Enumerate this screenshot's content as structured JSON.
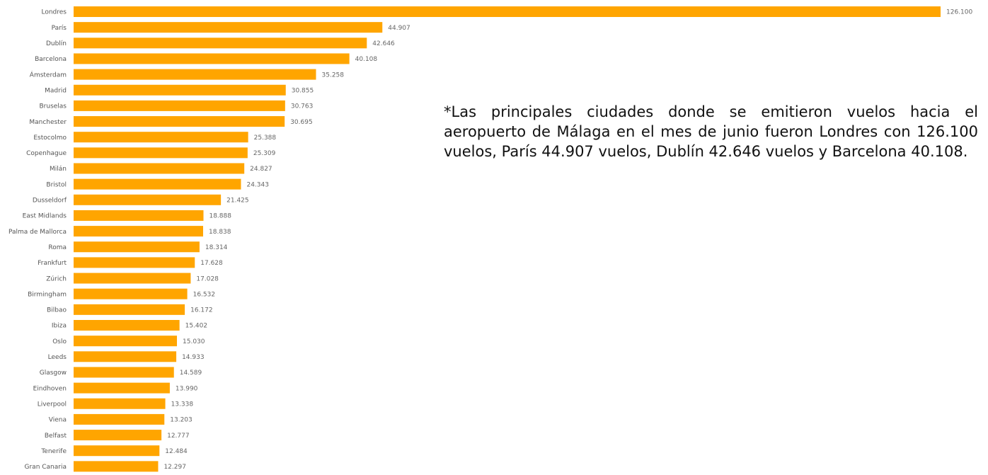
{
  "chart_data": {
    "type": "bar",
    "orientation": "horizontal",
    "bar_color": "#FFA500",
    "categories": [
      "Londres",
      "París",
      "Dublín",
      "Barcelona",
      "Ámsterdam",
      "Madrid",
      "Bruselas",
      "Manchester",
      "Estocolmo",
      "Copenhague",
      "Milán",
      "Bristol",
      "Dusseldorf",
      "East Midlands",
      "Palma de Mallorca",
      "Roma",
      "Frankfurt",
      "Zúrich",
      "Birmingham",
      "Bilbao",
      "Ibiza",
      "Oslo",
      "Leeds",
      "Glasgow",
      "Eindhoven",
      "Liverpool",
      "Viena",
      "Belfast",
      "Tenerife",
      "Gran Canaria"
    ],
    "values": [
      126100,
      44907,
      42646,
      40108,
      35258,
      30855,
      30763,
      30695,
      25388,
      25309,
      24827,
      24343,
      21425,
      18888,
      18838,
      18314,
      17628,
      17028,
      16532,
      16172,
      15402,
      15030,
      14933,
      14589,
      13990,
      13338,
      13203,
      12777,
      12484,
      12297
    ],
    "value_labels": [
      "126.100",
      "44.907",
      "42.646",
      "40.108",
      "35.258",
      "30.855",
      "30.763",
      "30.695",
      "25.388",
      "25.309",
      "24.827",
      "24.343",
      "21.425",
      "18.888",
      "18.838",
      "18.314",
      "17.628",
      "17.028",
      "16.532",
      "16.172",
      "15.402",
      "15.030",
      "14.933",
      "14.589",
      "13.990",
      "13.338",
      "13.203",
      "12.777",
      "12.484",
      "12.297"
    ],
    "xlim": [
      0,
      126100
    ],
    "grid": false,
    "legend": "none"
  },
  "note": "*Las principales ciudades donde se emitieron vuelos hacia el aeropuerto de Málaga en el mes de junio fueron Londres con 126.100 vuelos, París 44.907 vuelos, Dublín 42.646 vuelos y Barcelona 40.108."
}
